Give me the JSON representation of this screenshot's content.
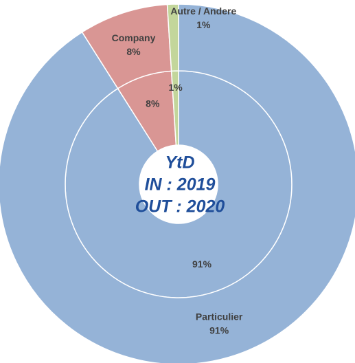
{
  "chart_data": {
    "type": "donut",
    "center_text": "YtD",
    "categories": [
      "Particulier",
      "Company",
      "Autre / Andere"
    ],
    "colors": [
      "#95b3d7",
      "#d99694",
      "#c3d69b"
    ],
    "series": [
      {
        "name": "IN : 2019",
        "values": [
          91,
          8,
          1
        ],
        "value_labels": [
          "91%",
          "8%",
          "1%"
        ]
      },
      {
        "name": "OUT : 2020",
        "values": [
          91,
          8,
          1
        ],
        "value_labels": [
          "91%",
          "8%",
          "1%"
        ]
      }
    ]
  }
}
